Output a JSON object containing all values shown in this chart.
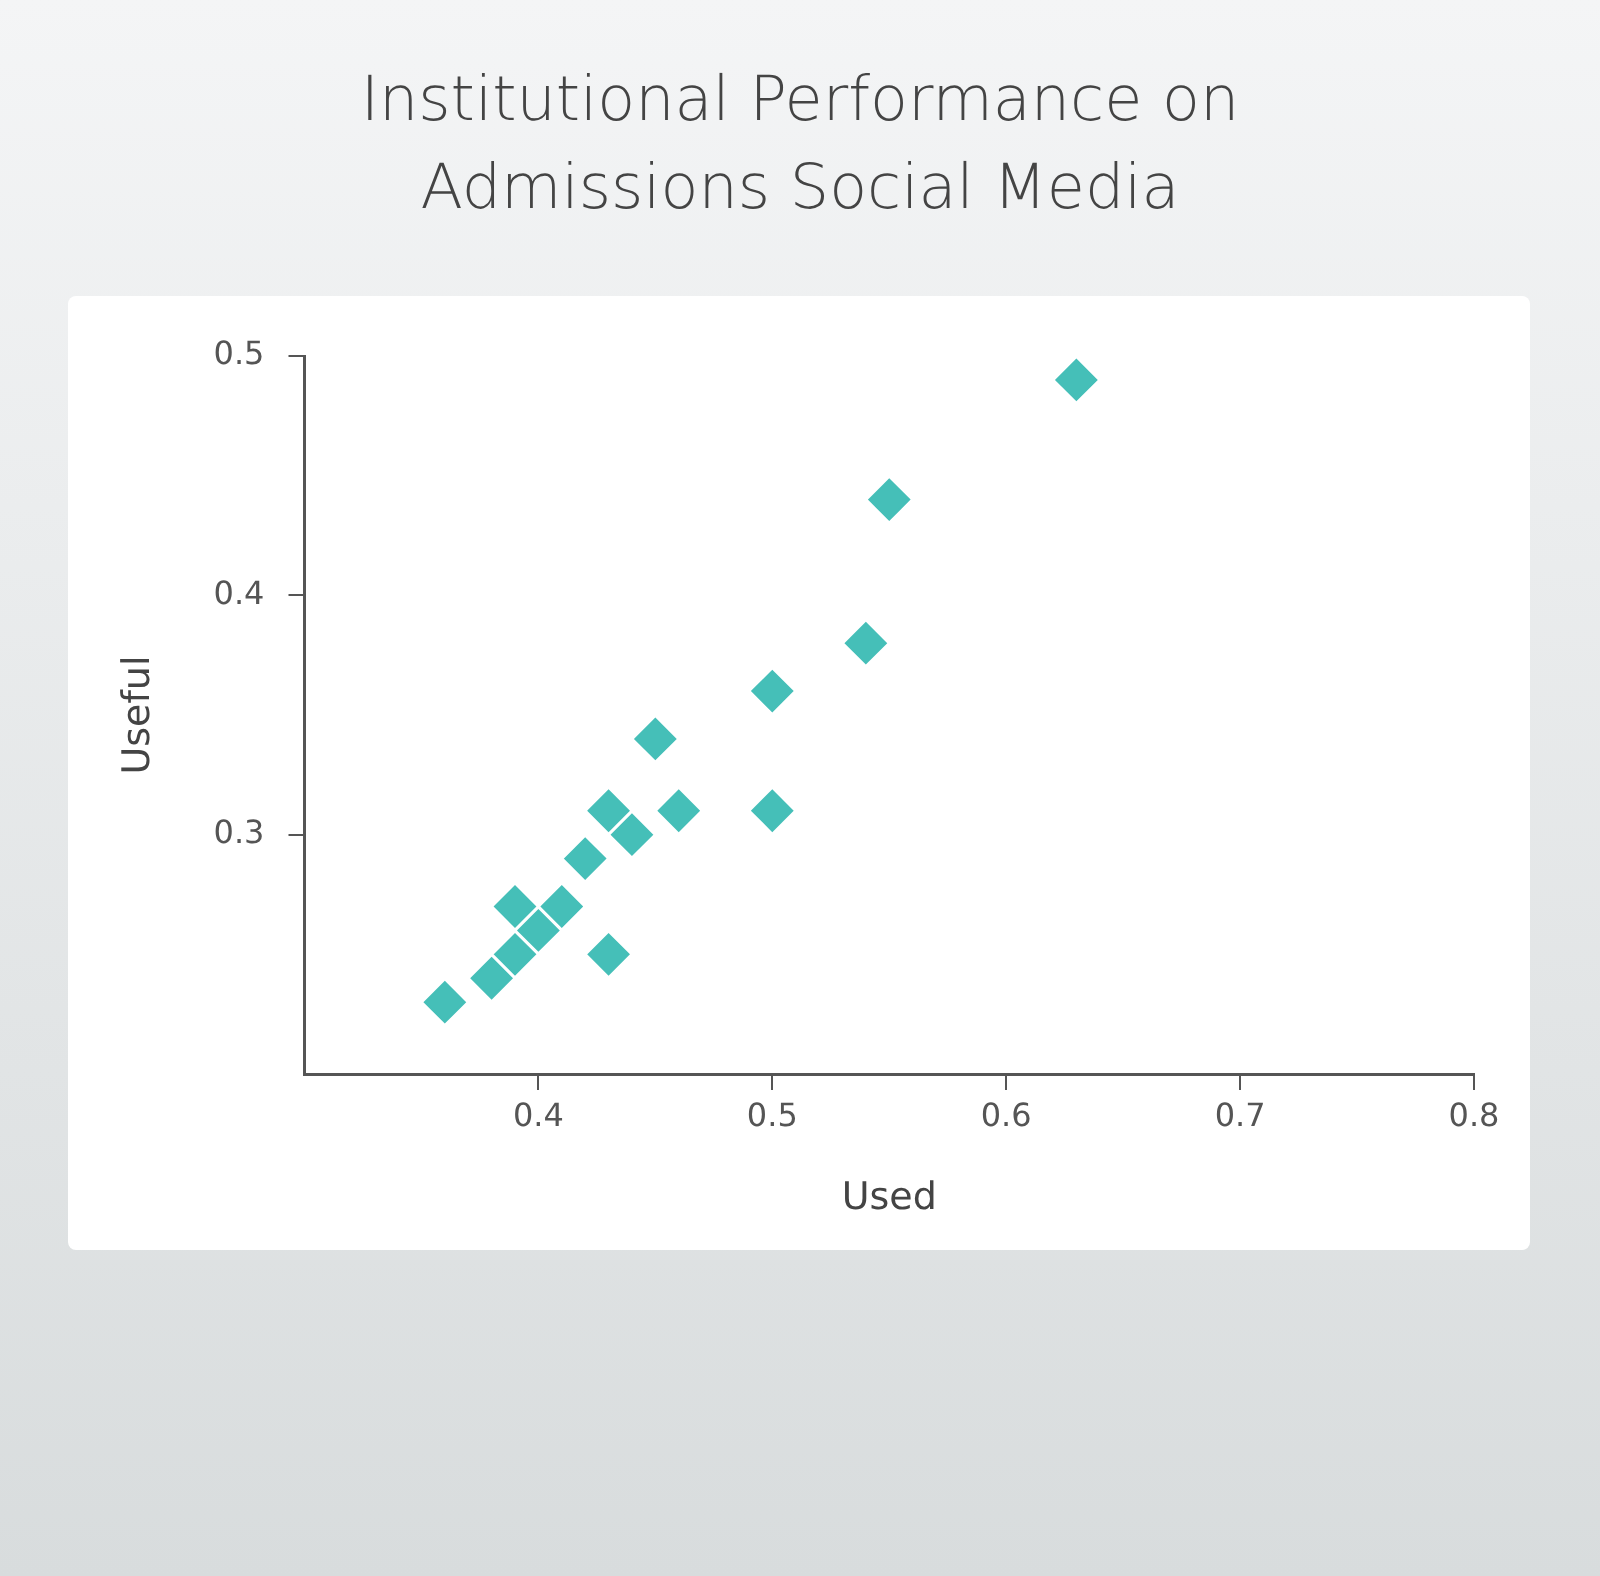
{
  "chart_data": {
    "type": "scatter",
    "title": "Institutional Performance on\nAdmissions Social Media",
    "xlabel": "Used",
    "ylabel": "Useful",
    "x": [
      0.36,
      0.38,
      0.39,
      0.39,
      0.4,
      0.41,
      0.42,
      0.43,
      0.43,
      0.44,
      0.45,
      0.46,
      0.5,
      0.5,
      0.54,
      0.55,
      0.63
    ],
    "series": [
      {
        "color": "#45bfb8",
        "values": [
          0.23,
          0.24,
          0.25,
          0.27,
          0.26,
          0.27,
          0.29,
          0.31,
          0.25,
          0.3,
          0.34,
          0.31,
          0.36,
          0.31,
          0.38,
          0.44,
          0.49
        ]
      }
    ],
    "xlim": [
      0.3,
      0.8
    ],
    "xticks": [
      0.4,
      0.5,
      0.6,
      0.7,
      0.8
    ],
    "ylim": [
      0.2,
      0.5
    ],
    "yticks": [
      0.3,
      0.4,
      0.5
    ],
    "marker": "diamond",
    "grid": false,
    "legend": false
  }
}
